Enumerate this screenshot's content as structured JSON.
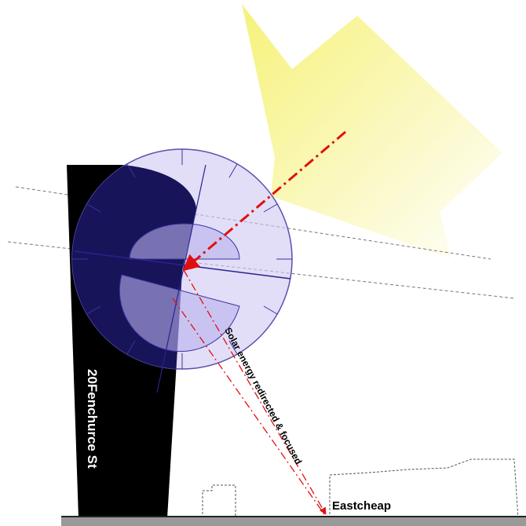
{
  "labels": {
    "building": "20Fenchurce St",
    "ray": "Solar energy redirected & focused",
    "street": "Eastcheap"
  }
}
